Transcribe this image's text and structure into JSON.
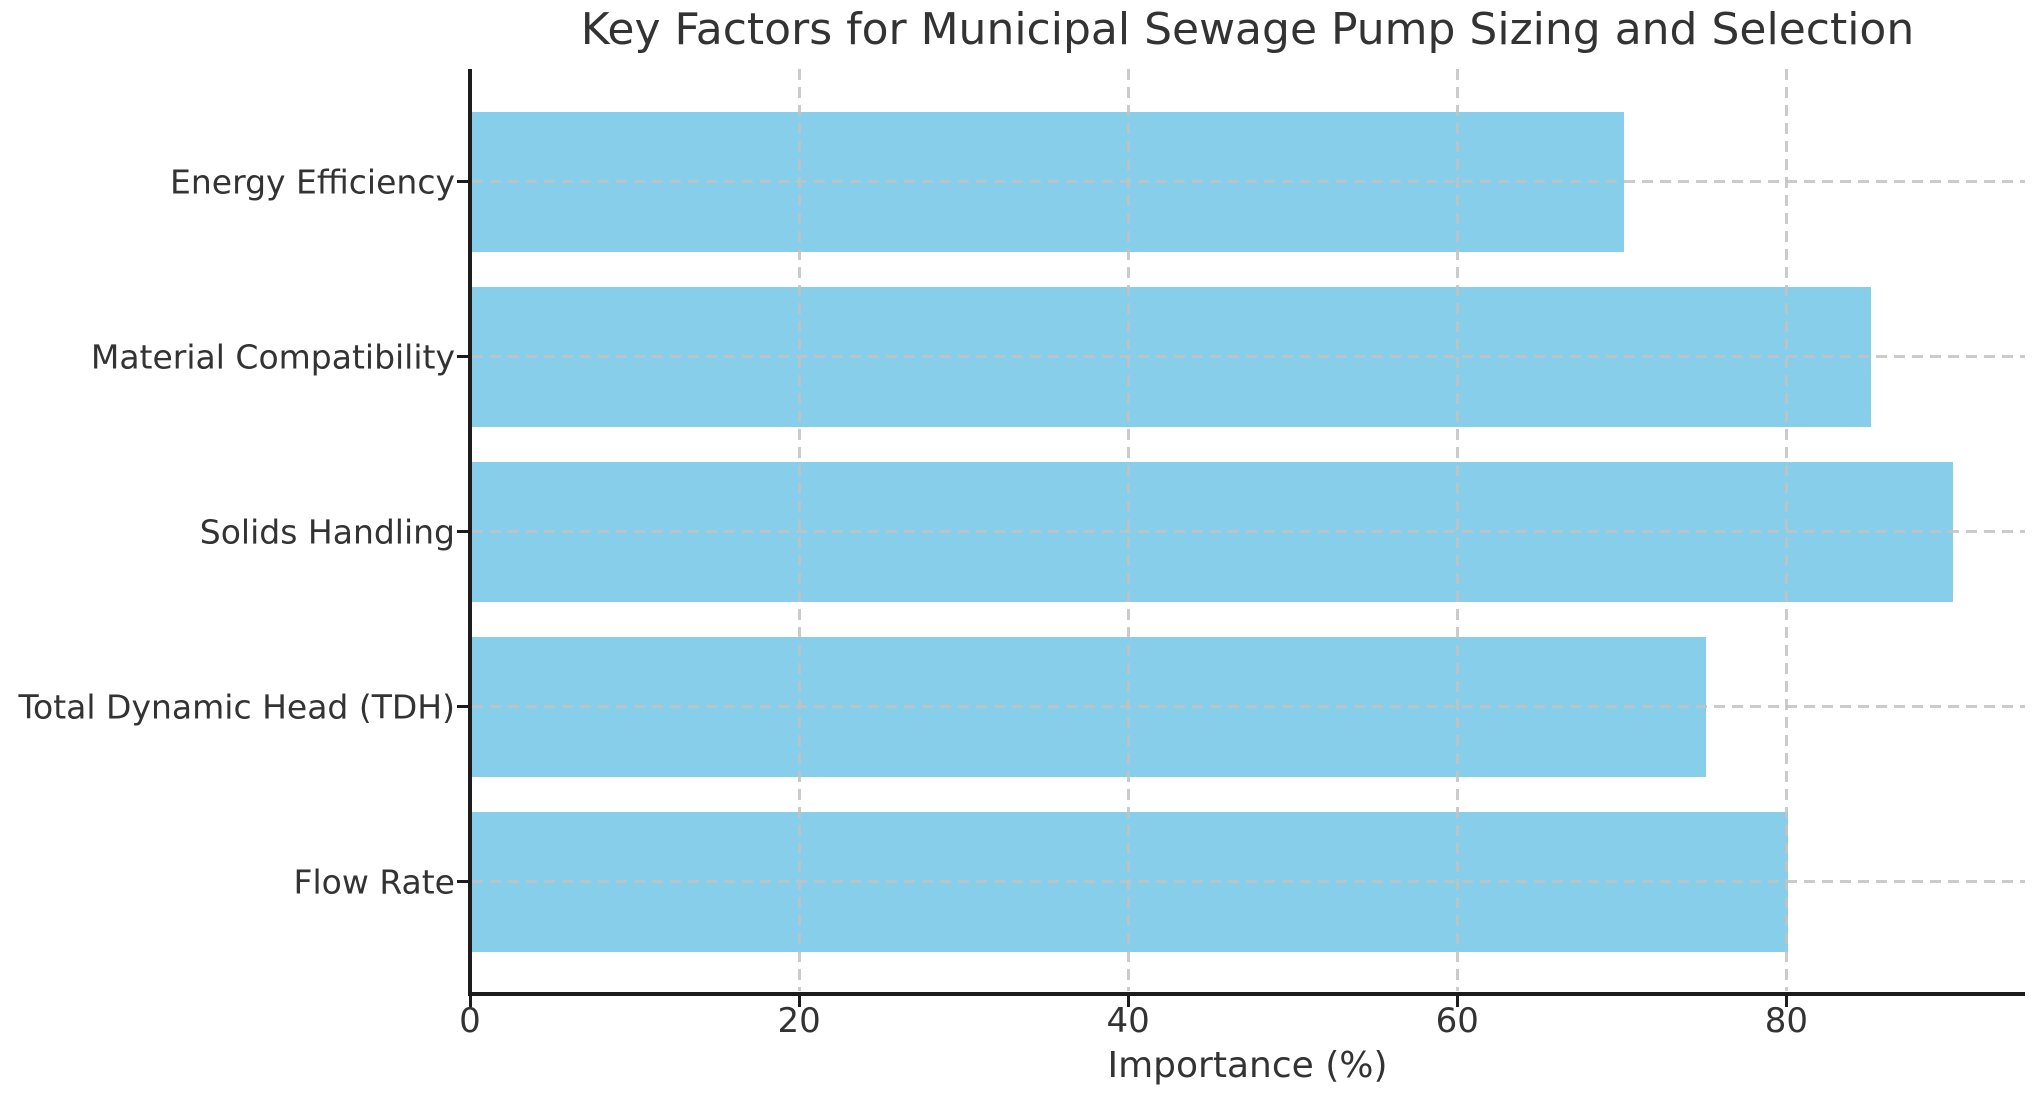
{
  "chart_data": {
    "type": "bar",
    "orientation": "horizontal",
    "title": "Key Factors for Municipal Sewage Pump Sizing and Selection",
    "xlabel": "Importance (%)",
    "ylabel": "",
    "categories": [
      "Energy Efficiency",
      "Material Compatibility",
      "Solids Handling",
      "Total Dynamic Head (TDH)",
      "Flow Rate"
    ],
    "category_order": "top-to-bottom",
    "values": [
      70,
      85,
      90,
      75,
      80
    ],
    "xlim": [
      0,
      94.5
    ],
    "xticks": [
      0,
      20,
      40,
      60,
      80
    ],
    "grid": true,
    "grid_style": "dashed",
    "grid_over_bars": true,
    "legend_position": "none",
    "bar_color": "#87CEEB",
    "colors": {
      "background": "#ffffff",
      "bar": "#87CEEB",
      "grid": "#c2c2c2",
      "spine": "#1c1c1c",
      "text": "#333333"
    }
  }
}
